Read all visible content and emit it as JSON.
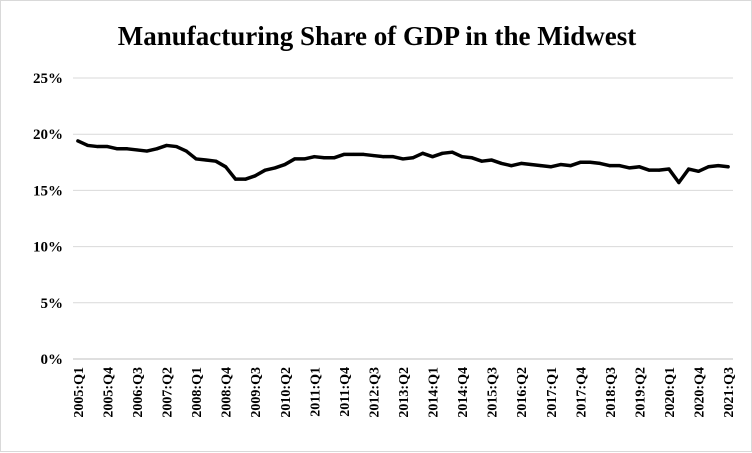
{
  "chart_data": {
    "type": "line",
    "title": "Manufacturing Share of GDP in the Midwest",
    "xlabel": "",
    "ylabel": "",
    "ylim": [
      0,
      25
    ],
    "yticks": [
      "0%",
      "5%",
      "10%",
      "15%",
      "20%",
      "25%"
    ],
    "ytick_values": [
      0,
      5,
      10,
      15,
      20,
      25
    ],
    "grid": "horizontal",
    "legend": "none",
    "line_color": "#000000",
    "x": [
      "2005:Q1",
      "2005:Q2",
      "2005:Q3",
      "2005:Q4",
      "2006:Q1",
      "2006:Q2",
      "2006:Q3",
      "2006:Q4",
      "2007:Q1",
      "2007:Q2",
      "2007:Q3",
      "2007:Q4",
      "2008:Q1",
      "2008:Q2",
      "2008:Q3",
      "2008:Q4",
      "2009:Q1",
      "2009:Q2",
      "2009:Q3",
      "2009:Q4",
      "2010:Q1",
      "2010:Q2",
      "2010:Q3",
      "2010:Q4",
      "2011:Q1",
      "2011:Q2",
      "2011:Q3",
      "2011:Q4",
      "2012:Q1",
      "2012:Q2",
      "2012:Q3",
      "2012:Q4",
      "2013:Q1",
      "2013:Q2",
      "2013:Q3",
      "2013:Q4",
      "2014:Q1",
      "2014:Q2",
      "2014:Q3",
      "2014:Q4",
      "2015:Q1",
      "2015:Q2",
      "2015:Q3",
      "2015:Q4",
      "2016:Q1",
      "2016:Q2",
      "2016:Q3",
      "2016:Q4",
      "2017:Q1",
      "2017:Q2",
      "2017:Q3",
      "2017:Q4",
      "2018:Q1",
      "2018:Q2",
      "2018:Q3",
      "2018:Q4",
      "2019:Q1",
      "2019:Q2",
      "2019:Q3",
      "2019:Q4",
      "2020:Q1",
      "2020:Q2",
      "2020:Q3",
      "2020:Q4",
      "2021:Q1",
      "2021:Q2",
      "2021:Q3"
    ],
    "x_tick_labels": [
      "2005:Q1",
      "2005:Q4",
      "2006:Q3",
      "2007:Q2",
      "2008:Q1",
      "2008:Q4",
      "2009:Q3",
      "2010:Q2",
      "2011:Q1",
      "2011:Q4",
      "2012:Q3",
      "2013:Q2",
      "2014:Q1",
      "2014:Q4",
      "2015:Q3",
      "2016:Q2",
      "2017:Q1",
      "2017:Q4",
      "2018:Q3",
      "2019:Q2",
      "2020:Q1",
      "2020:Q4",
      "2021:Q3"
    ],
    "series": [
      {
        "values": [
          19.4,
          19.0,
          18.9,
          18.9,
          18.7,
          18.7,
          18.6,
          18.5,
          18.7,
          19.0,
          18.9,
          18.5,
          17.8,
          17.7,
          17.6,
          17.1,
          16.0,
          16.0,
          16.3,
          16.8,
          17.0,
          17.3,
          17.8,
          17.8,
          18.0,
          17.9,
          17.9,
          18.2,
          18.2,
          18.2,
          18.1,
          18.0,
          18.0,
          17.8,
          17.9,
          18.3,
          18.0,
          18.3,
          18.4,
          18.0,
          17.9,
          17.6,
          17.7,
          17.4,
          17.2,
          17.4,
          17.3,
          17.2,
          17.1,
          17.3,
          17.2,
          17.5,
          17.5,
          17.4,
          17.2,
          17.2,
          17.0,
          17.1,
          16.8,
          16.8,
          16.9,
          15.7,
          16.9,
          16.7,
          17.1,
          17.2,
          17.1
        ]
      }
    ]
  }
}
